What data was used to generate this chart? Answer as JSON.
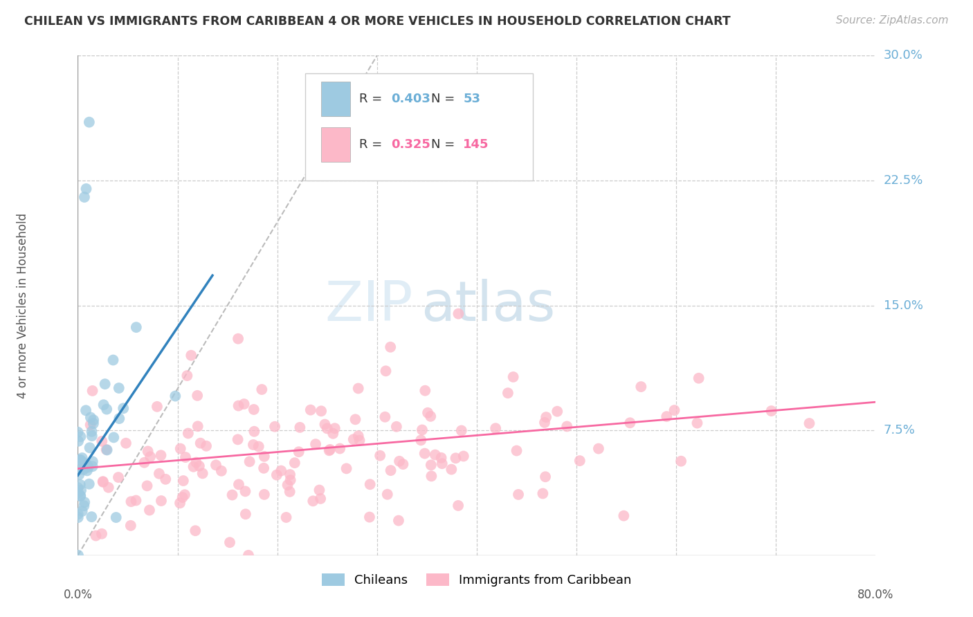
{
  "title": "CHILEAN VS IMMIGRANTS FROM CARIBBEAN 4 OR MORE VEHICLES IN HOUSEHOLD CORRELATION CHART",
  "source": "Source: ZipAtlas.com",
  "ylabel": "4 or more Vehicles in Household",
  "legend_label_1": "Chileans",
  "legend_label_2": "Immigrants from Caribbean",
  "r1_text": "0.403",
  "n1_text": "53",
  "r2_text": "0.325",
  "n2_text": "145",
  "color1": "#9ecae1",
  "color2": "#fcb8c8",
  "line_color1": "#3182bd",
  "line_color2": "#f768a1",
  "axis_tick_color": "#6baed6",
  "xmin": 0.0,
  "xmax": 0.8,
  "ymin": 0.0,
  "ymax": 0.3,
  "ytick_vals": [
    0.075,
    0.15,
    0.225,
    0.3
  ],
  "ytick_labels": [
    "7.5%",
    "15.0%",
    "22.5%",
    "30.0%"
  ],
  "xtick_labels": [
    "0.0%",
    "80.0%"
  ],
  "grid_color": "#cccccc",
  "background": "#ffffff",
  "watermark_zip_color": "#c5dff0",
  "watermark_atlas_color": "#b8cfe0"
}
